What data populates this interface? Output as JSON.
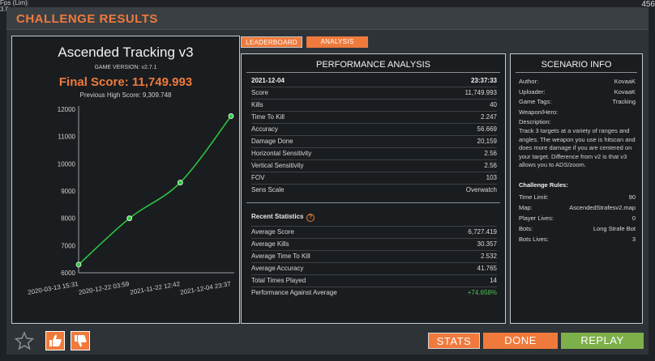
{
  "window": {
    "title": "CHALLENGE RESULTS",
    "corner_left": "Fps (Lim)\n3.0",
    "corner_right": "456"
  },
  "score_card": {
    "scenario_name": "Ascended Tracking v3",
    "game_version": "GAME VERSION: v2.7.1",
    "final_score": "Final Score: 11,749.993",
    "previous_high": "Previous High Score: 9,309.748"
  },
  "chart_data": {
    "type": "line",
    "x": [
      "2020-03-13 15:31",
      "2020-12-22 03:59",
      "2021-11-22 12:42",
      "2021-12-04 23:37"
    ],
    "values": [
      6300,
      8000,
      9310,
      11750
    ],
    "yticks": [
      6000,
      7000,
      8000,
      9000,
      10000,
      11000,
      12000
    ],
    "ylim": [
      6000,
      12000
    ],
    "line_color": "#2ecc40",
    "grid": false
  },
  "tabs": [
    {
      "label": "LEADERBOARD"
    },
    {
      "label": "ANALYSIS"
    }
  ],
  "performance": {
    "heading": "PERFORMANCE ANALYSIS",
    "date": "2021-12-04",
    "time": "23:37:33",
    "rows": [
      {
        "label": "Score",
        "value": "11,749.993"
      },
      {
        "label": "Kills",
        "value": "40"
      },
      {
        "label": "Time To Kill",
        "value": "2.247"
      },
      {
        "label": "Accuracy",
        "value": "56.669"
      },
      {
        "label": "Damage Done",
        "value": "20,159"
      },
      {
        "label": "Horizontal Sensitivity",
        "value": "2.56"
      },
      {
        "label": "Vertical Sensitivity",
        "value": "2.56"
      },
      {
        "label": "FOV",
        "value": "103"
      },
      {
        "label": "Sens Scale",
        "value": "Overwatch"
      }
    ],
    "recent_title": "Recent Statistics",
    "recent_rows": [
      {
        "label": "Average Score",
        "value": "6,727.419"
      },
      {
        "label": "Average Kills",
        "value": "30.357"
      },
      {
        "label": "Average Time To Kill",
        "value": "2.532"
      },
      {
        "label": "Average Accuracy",
        "value": "41.765"
      },
      {
        "label": "Total Times Played",
        "value": "14"
      },
      {
        "label": "Performance Against Average",
        "value": "+74.658%"
      }
    ]
  },
  "scenario_info": {
    "heading": "SCENARIO INFO",
    "rows": [
      {
        "label": "Author:",
        "value": "KovaaK"
      },
      {
        "label": "Uploader:",
        "value": "KovaaK"
      },
      {
        "label": "Game Tags:",
        "value": "Tracking"
      },
      {
        "label": "Weapon/Hero:",
        "value": ""
      },
      {
        "label": "Description:",
        "value": ""
      }
    ],
    "description": "Track 3 targets at a variety of ranges and angles.  The weapon you use is hitscan and does more damage if you are centered on your target.  Difference from v2 is that v3 allows you to ADS/zoom.",
    "rules_title": "Challenge Rules:",
    "rules": [
      {
        "label": "Time Limit:",
        "value": "90"
      },
      {
        "label": "Map:",
        "value": "AscendedStrafesv2.map"
      },
      {
        "label": "Player Lives:",
        "value": "0"
      },
      {
        "label": "Bots:",
        "value": "Long Strafe Bot"
      },
      {
        "label": "Bots Lives:",
        "value": "3"
      }
    ]
  },
  "buttons": {
    "stats": "STATS",
    "done": "DONE",
    "replay": "REPLAY"
  },
  "icons": {
    "favorite": "star-icon",
    "like": "thumbs-up-icon",
    "dislike": "thumbs-down-icon",
    "help": "question-icon"
  },
  "colors": {
    "accent": "#f07a3c",
    "positive": "#4cc24c",
    "replay": "#7db04a"
  }
}
